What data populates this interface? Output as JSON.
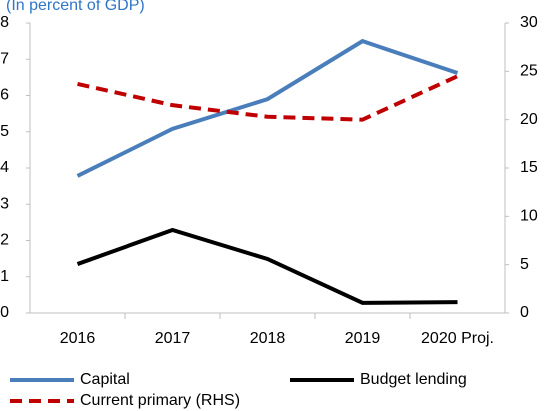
{
  "chart_data": {
    "type": "line",
    "subtitle": "(In percent of GDP)",
    "categories": [
      "2016",
      "2017",
      "2018",
      "2019",
      "2020 Proj."
    ],
    "series": [
      {
        "name": "Capital",
        "color": "#4a7ebb",
        "values": [
          3.78,
          5.08,
          5.9,
          7.5,
          6.62
        ]
      },
      {
        "name": "Budget lending",
        "color": "#000000",
        "values": [
          1.35,
          2.29,
          1.49,
          0.28,
          0.3
        ]
      },
      {
        "name": "Current primary (RHS)",
        "color": "#c00000",
        "axis": "y2",
        "dashed": true,
        "values": [
          23.7,
          21.5,
          20.3,
          20.0,
          24.5
        ]
      }
    ],
    "ylim": [
      0,
      8
    ],
    "yticks": [
      0,
      1,
      2,
      3,
      4,
      5,
      6,
      7,
      8
    ],
    "y2lim": [
      0,
      30
    ],
    "y2ticks": [
      0,
      5,
      10,
      15,
      20,
      25,
      30
    ]
  }
}
